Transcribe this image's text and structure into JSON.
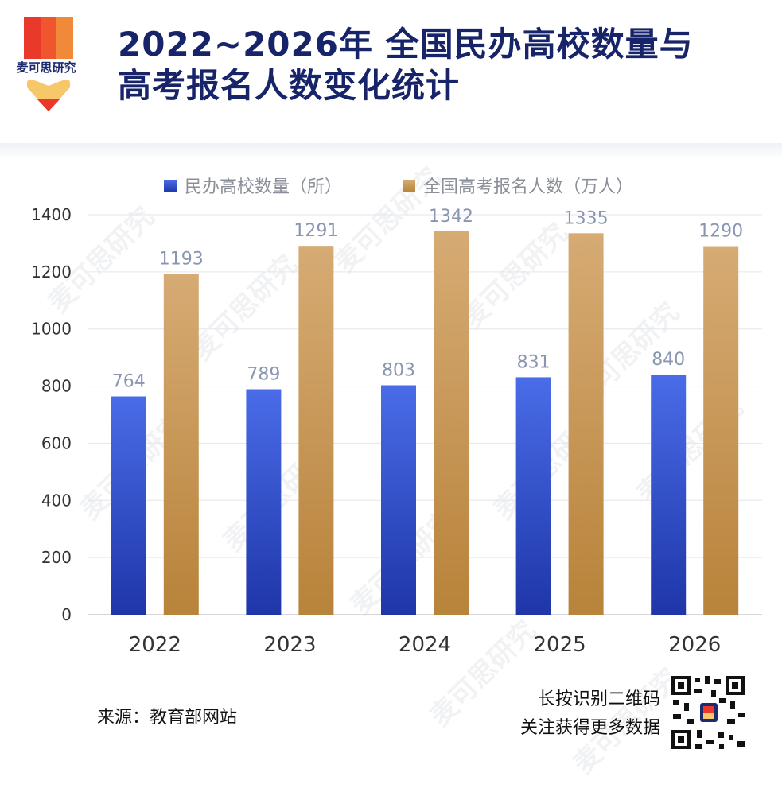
{
  "brand": {
    "name": "麦可思研究"
  },
  "title": {
    "line1": "2022~2026年  全国民办高校数量与",
    "line2": "高考报名人数变化统计"
  },
  "colors": {
    "series1": "#3a57d6",
    "series2": "#cf9c56",
    "title": "#17246a",
    "logo_red": "#e8392b",
    "logo_orange": "#f08a3a"
  },
  "chart_data": {
    "type": "bar",
    "categories": [
      "2022",
      "2023",
      "2024",
      "2025",
      "2026"
    ],
    "series": [
      {
        "name": "民办高校数量（所）",
        "values": [
          764,
          789,
          803,
          831,
          840
        ]
      },
      {
        "name": "全国高考报名人数（万人）",
        "values": [
          1193,
          1291,
          1342,
          1335,
          1290
        ]
      }
    ],
    "ylim": [
      0,
      1400
    ],
    "yticks": [
      0,
      200,
      400,
      600,
      800,
      1000,
      1200,
      1400
    ],
    "grid": true,
    "legend": "top"
  },
  "footer": {
    "source": "来源：教育部网站",
    "cta_line1": "长按识别二维码",
    "cta_line2": "关注获得更多数据"
  }
}
